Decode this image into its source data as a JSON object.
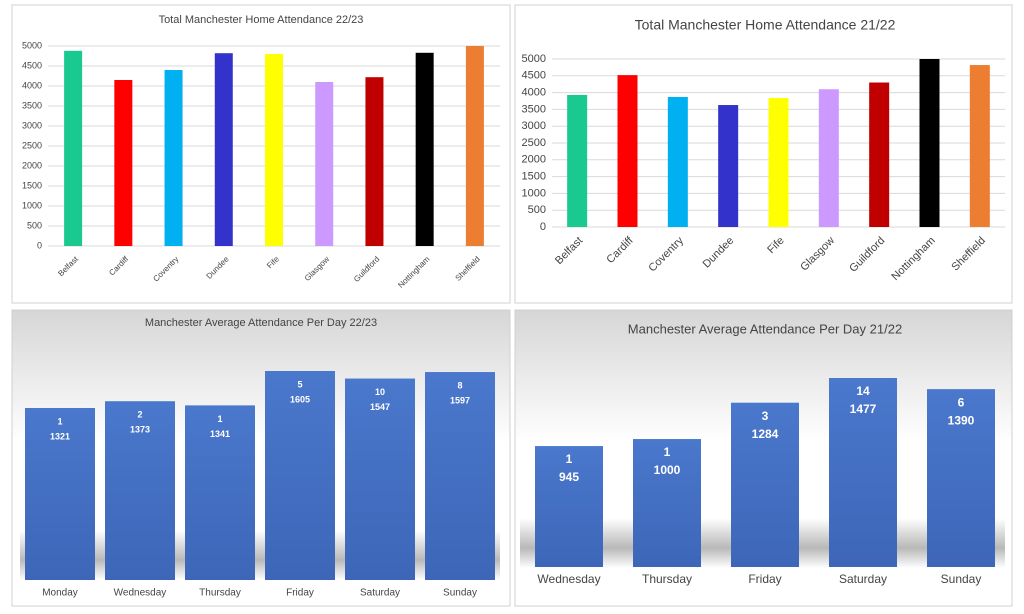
{
  "chart_data": [
    {
      "type": "bar",
      "title": "Total Manchester Home Attendance 22/23",
      "categories": [
        "Belfast",
        "Cardiff",
        "Coventry",
        "Dundee",
        "Fife",
        "Glasgow",
        "Guildford",
        "Nottingham",
        "Sheffield"
      ],
      "values": [
        4880,
        4150,
        4400,
        4820,
        4800,
        4100,
        4220,
        4830,
        5000
      ],
      "colors": [
        "#19c990",
        "#ff0000",
        "#00b0f0",
        "#3333cc",
        "#ffff00",
        "#cc99ff",
        "#c00000",
        "#000000",
        "#ed7d31"
      ],
      "ylim": [
        0,
        5000
      ],
      "yticks": [
        0,
        500,
        1000,
        1500,
        2000,
        2500,
        3000,
        3500,
        4000,
        4500,
        5000
      ],
      "grid": true
    },
    {
      "type": "bar",
      "title": "Total Manchester Home Attendance 21/22",
      "categories": [
        "Belfast",
        "Cardiff",
        "Coventry",
        "Dundee",
        "Fife",
        "Glasgow",
        "Guildford",
        "Nottingham",
        "Sheffield"
      ],
      "values": [
        3930,
        4520,
        3870,
        3630,
        3840,
        4100,
        4300,
        5000,
        4820
      ],
      "colors": [
        "#19c990",
        "#ff0000",
        "#00b0f0",
        "#3333cc",
        "#ffff00",
        "#cc99ff",
        "#c00000",
        "#000000",
        "#ed7d31"
      ],
      "ylim": [
        0,
        5000
      ],
      "yticks": [
        0,
        500,
        1000,
        1500,
        2000,
        2500,
        3000,
        3500,
        4000,
        4500,
        5000
      ],
      "grid": true
    },
    {
      "type": "bar",
      "title": "Manchester Average Attendance Per Day 22/23",
      "categories": [
        "Monday",
        "Wednesday",
        "Thursday",
        "Friday",
        "Saturday",
        "Sunday"
      ],
      "values": [
        1321,
        1373,
        1341,
        1605,
        1547,
        1597
      ],
      "counts": [
        1,
        2,
        1,
        5,
        10,
        8
      ],
      "color": "#4472c4"
    },
    {
      "type": "bar",
      "title": "Manchester Average Attendance Per Day 21/22",
      "categories": [
        "Wednesday",
        "Thursday",
        "Friday",
        "Saturday",
        "Sunday"
      ],
      "values": [
        945,
        1000,
        1284,
        1477,
        1390
      ],
      "counts": [
        1,
        1,
        3,
        14,
        6
      ],
      "color": "#4472c4"
    }
  ]
}
